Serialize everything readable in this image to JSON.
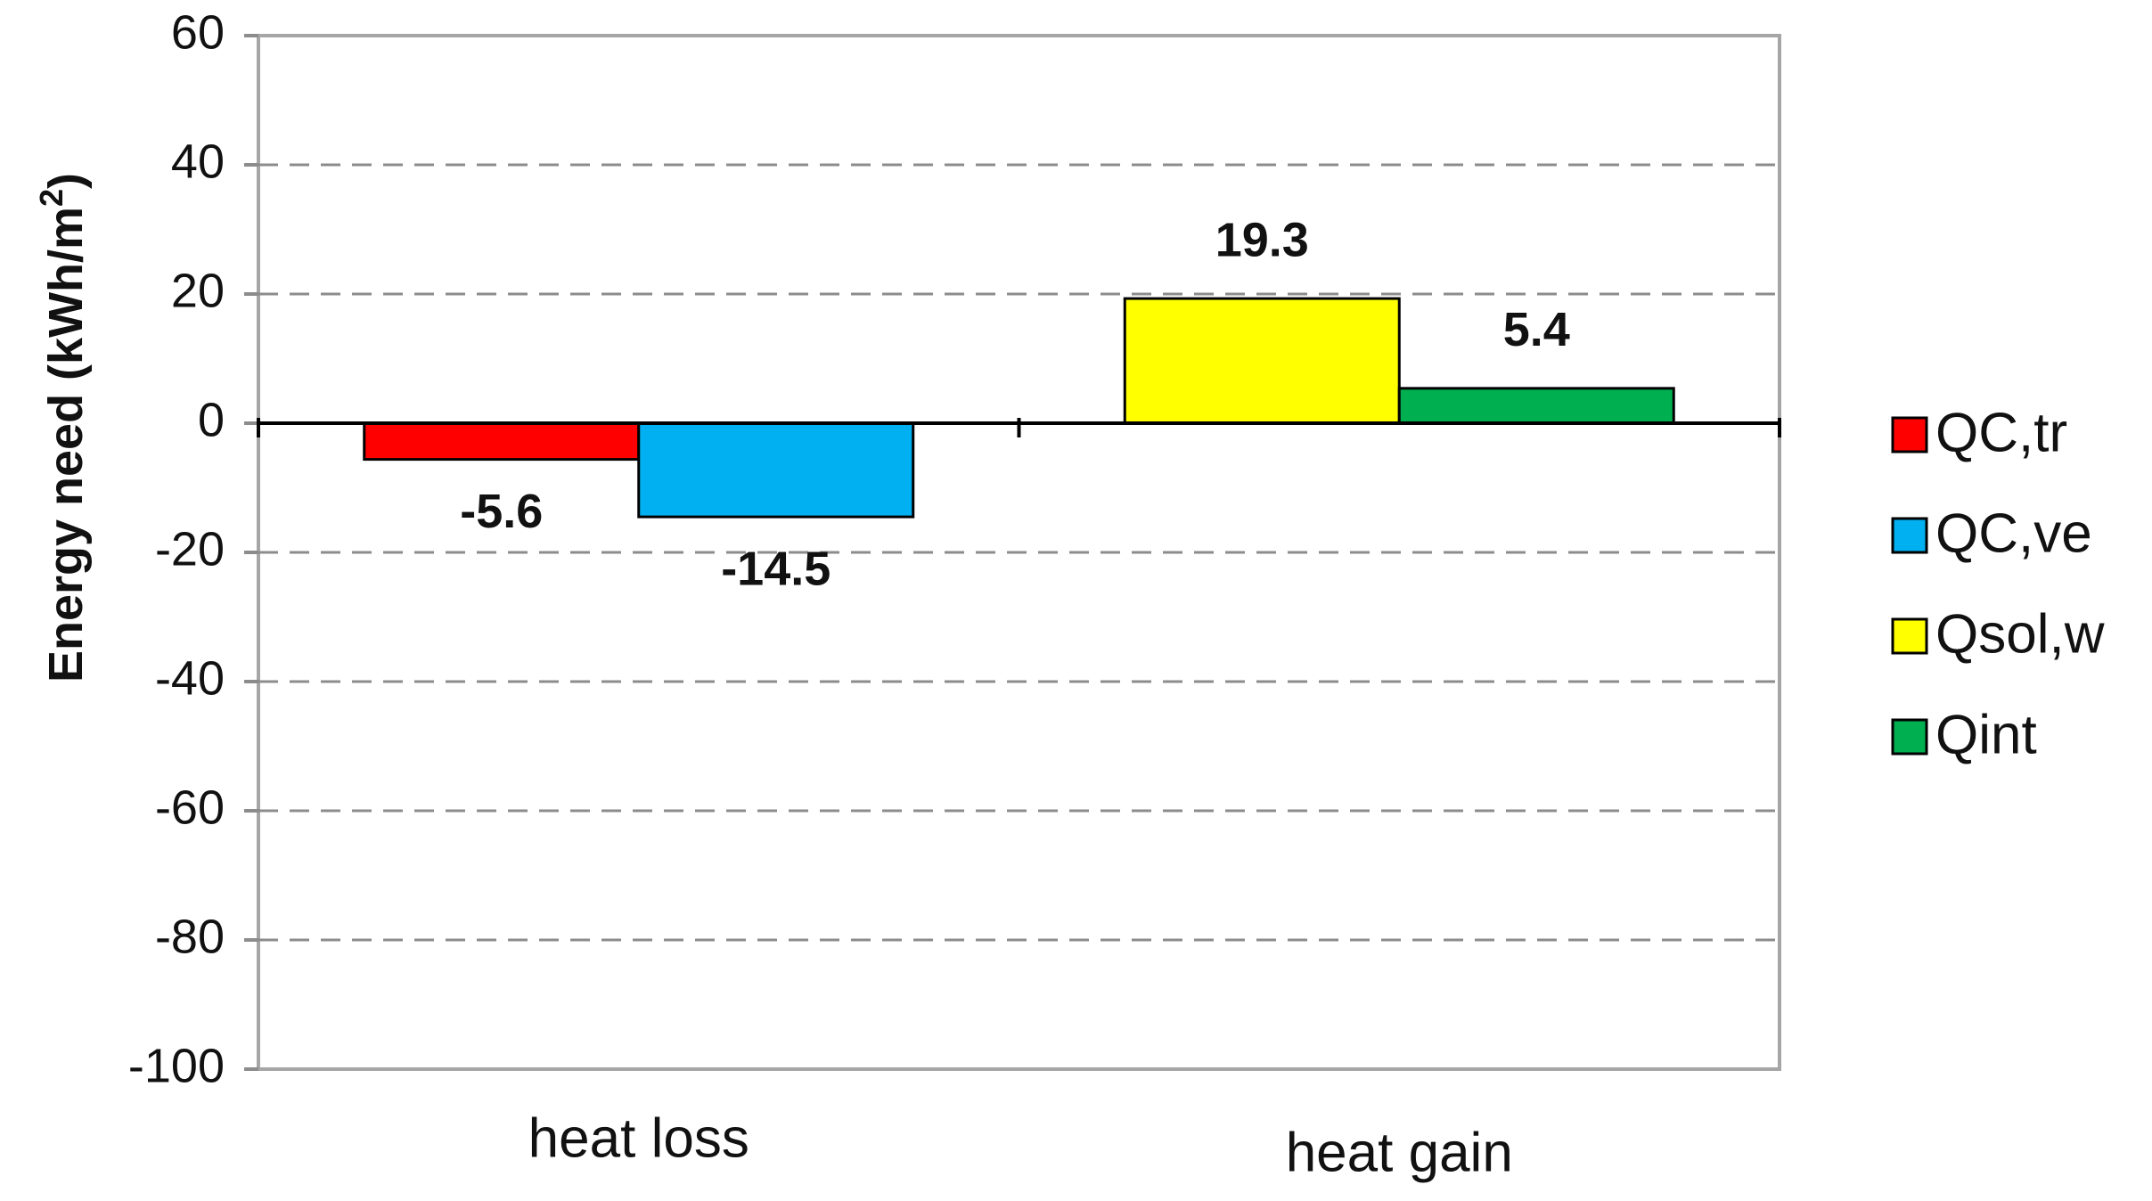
{
  "chart_data": {
    "type": "bar",
    "title": "",
    "xlabel": "",
    "ylabel": "Energy need (kWh/m",
    "ylabel_superscript": "2",
    "ylabel_suffix": ")",
    "ylim": [
      -100,
      60
    ],
    "yticks": [
      60,
      40,
      20,
      0,
      -20,
      -40,
      -60,
      -80,
      -100
    ],
    "ytick_labels": [
      "60",
      "40",
      "20",
      "0",
      "-20",
      "-40",
      "-60",
      "-80",
      "-100"
    ],
    "grid": true,
    "legend_position": "right",
    "categories": [
      "heat loss",
      "heat gain"
    ],
    "bars": [
      {
        "series": "QC,tr",
        "category": "heat loss",
        "value": -5.6,
        "label": "-5.6",
        "color": "#ff0000"
      },
      {
        "series": "QC,ve",
        "category": "heat loss",
        "value": -14.5,
        "label": "-14.5",
        "color": "#00b0f0"
      },
      {
        "series": "Qsol,w",
        "category": "heat gain",
        "value": 19.3,
        "label": "19.3",
        "color": "#ffff00"
      },
      {
        "series": "Qint",
        "category": "heat gain",
        "value": 5.4,
        "label": "5.4",
        "color": "#00b050"
      }
    ],
    "legend": [
      {
        "name": "QC,tr",
        "color": "#ff0000"
      },
      {
        "name": "QC,ve",
        "color": "#00b0f0"
      },
      {
        "name": "Qsol,w",
        "color": "#ffff00"
      },
      {
        "name": "Qint",
        "color": "#00b050"
      }
    ]
  }
}
